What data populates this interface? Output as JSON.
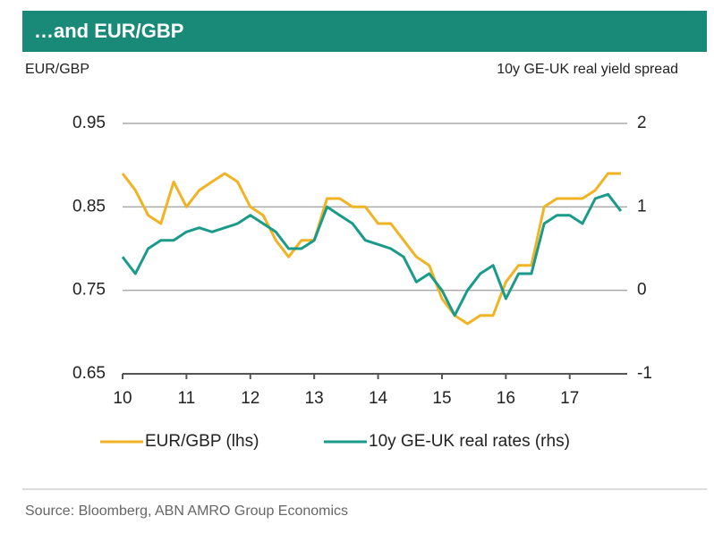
{
  "chart_data": {
    "type": "line",
    "title": "…and EUR/GBP",
    "y_label": "EUR/GBP",
    "y2_label": "10y GE-UK real yield spread",
    "source": "Source: Bloomberg, ABN AMRO Group Economics",
    "x": [
      10,
      10.2,
      10.4,
      10.6,
      10.8,
      11,
      11.2,
      11.4,
      11.6,
      11.8,
      12,
      12.2,
      12.4,
      12.6,
      12.8,
      13,
      13.2,
      13.4,
      13.6,
      13.8,
      14,
      14.2,
      14.4,
      14.6,
      14.8,
      15,
      15.2,
      15.4,
      15.6,
      15.8,
      16,
      16.2,
      16.4,
      16.6,
      16.8,
      17,
      17.2,
      17.4,
      17.6,
      17.8
    ],
    "xlim": [
      10,
      17.9
    ],
    "xticks": [
      10,
      11,
      12,
      13,
      14,
      15,
      16,
      17
    ],
    "ylim": [
      0.65,
      0.95
    ],
    "yticks": [
      0.65,
      0.75,
      0.85,
      0.95
    ],
    "y2lim": [
      -1,
      2
    ],
    "y2ticks": [
      -1,
      0,
      1,
      2
    ],
    "grid": true,
    "series": [
      {
        "name": "EUR/GBP (lhs)",
        "color": "#f0b323",
        "values": [
          0.89,
          0.87,
          0.84,
          0.83,
          0.88,
          0.85,
          0.87,
          0.88,
          0.89,
          0.88,
          0.85,
          0.84,
          0.81,
          0.79,
          0.81,
          0.81,
          0.86,
          0.86,
          0.85,
          0.85,
          0.83,
          0.83,
          0.81,
          0.79,
          0.78,
          0.74,
          0.72,
          0.71,
          0.72,
          0.72,
          0.76,
          0.78,
          0.78,
          0.85,
          0.86,
          0.86,
          0.86,
          0.87,
          0.89,
          0.89
        ]
      },
      {
        "name": "10y GE-UK real rates  (rhs)",
        "color": "#1a9a88",
        "axis": "y2",
        "values": [
          0.4,
          0.2,
          0.5,
          0.6,
          0.6,
          0.7,
          0.75,
          0.7,
          0.75,
          0.8,
          0.9,
          0.8,
          0.7,
          0.5,
          0.5,
          0.6,
          1.0,
          0.9,
          0.8,
          0.6,
          0.55,
          0.5,
          0.4,
          0.1,
          0.2,
          0.0,
          -0.3,
          0.0,
          0.2,
          0.3,
          -0.1,
          0.2,
          0.2,
          0.8,
          0.9,
          0.9,
          0.8,
          1.1,
          1.15,
          0.95
        ]
      }
    ]
  }
}
